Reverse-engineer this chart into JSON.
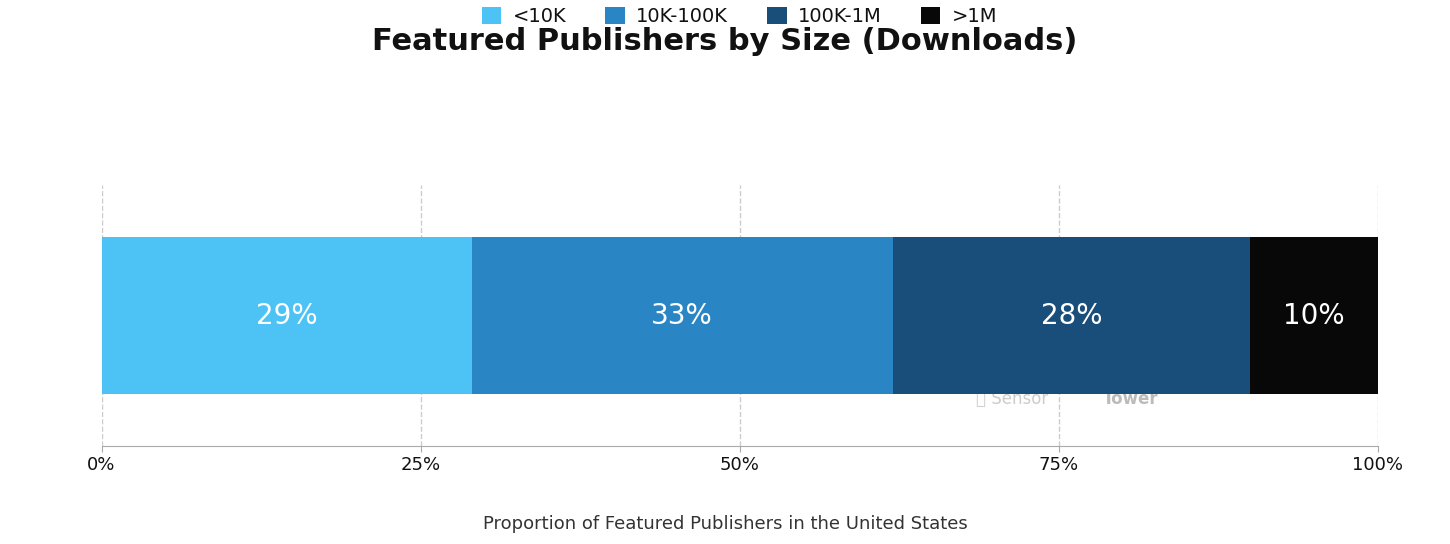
{
  "title": "Featured Publishers by Size (Downloads)",
  "xlabel": "Proportion of Featured Publishers in the United States",
  "categories": [
    "<10K",
    "10K-100K",
    "100K-1M",
    ">1M"
  ],
  "values": [
    29,
    33,
    28,
    10
  ],
  "colors": [
    "#4DC3F5",
    "#2A85C4",
    "#1A4E7A",
    "#080808"
  ],
  "labels": [
    "29%",
    "33%",
    "28%",
    "10%"
  ],
  "xticks": [
    0,
    25,
    50,
    75,
    100
  ],
  "xtick_labels": [
    "0%",
    "25%",
    "50%",
    "75%",
    "100%"
  ],
  "label_fontsize": 20,
  "title_fontsize": 22,
  "xlabel_fontsize": 13,
  "legend_fontsize": 14,
  "bar_height": 0.6,
  "background_color": "#FFFFFF",
  "text_color": "#111111",
  "grid_color": "#CCCCCC",
  "watermark_sensor_color": "#BBBBBB",
  "watermark_tower_color": "#999999"
}
